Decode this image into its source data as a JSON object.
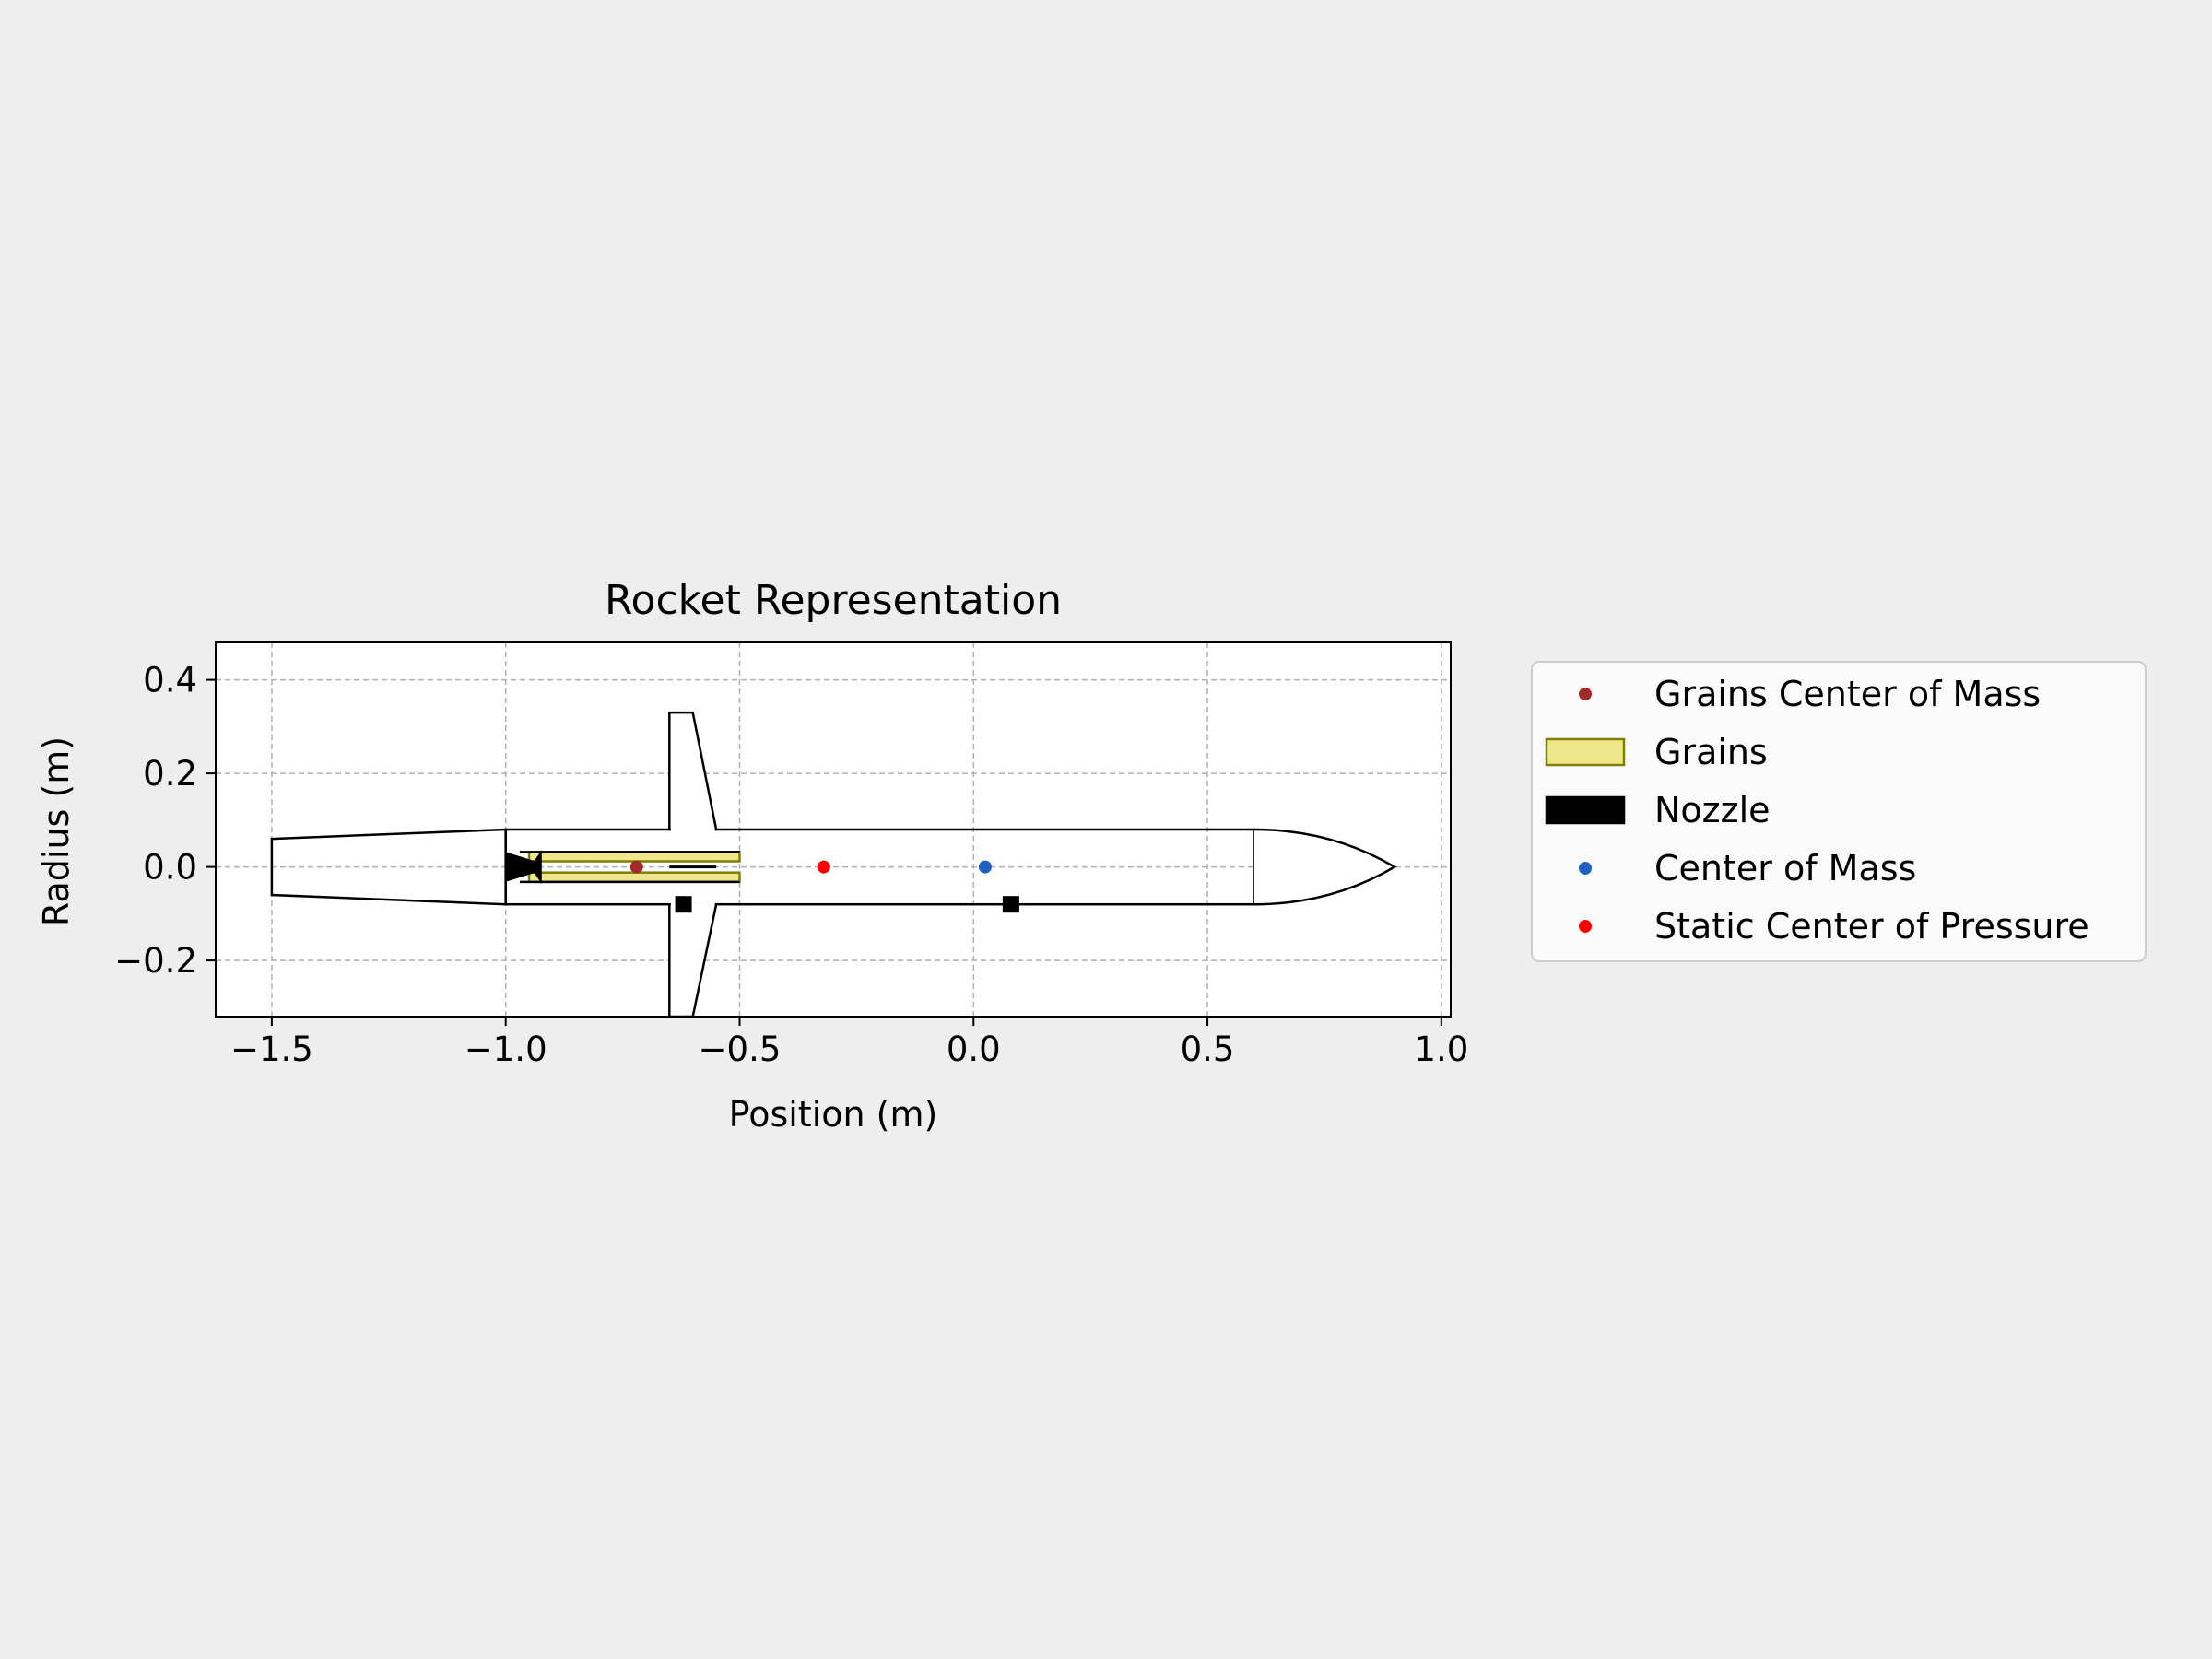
{
  "chart_data": {
    "type": "scatter",
    "title": "Rocket Representation",
    "xlabel": "Position (m)",
    "ylabel": "Radius (m)",
    "xlim": [
      -1.62,
      1.02
    ],
    "ylim": [
      -0.32,
      0.48
    ],
    "xticks": [
      -1.5,
      -1.0,
      -0.5,
      0.0,
      0.5,
      1.0
    ],
    "xtick_labels": [
      "−1.5",
      "−1.0",
      "−0.5",
      "0.0",
      "0.5",
      "1.0"
    ],
    "yticks": [
      -0.2,
      0.0,
      0.2,
      0.4
    ],
    "ytick_labels": [
      "−0.2",
      "0.0",
      "0.2",
      "0.4"
    ],
    "grid": true,
    "legend_position": "outside-right",
    "legend": [
      {
        "label": "Grains Center of Mass",
        "marker": "dot",
        "color": "#a52a2a"
      },
      {
        "label": "Grains",
        "marker": "patch",
        "color": "#f0e68c",
        "edge": "#808000"
      },
      {
        "label": "Nozzle",
        "marker": "patch",
        "color": "#000000",
        "edge": "#000000"
      },
      {
        "label": "Center of Mass",
        "marker": "dot",
        "color": "#1f5fbf"
      },
      {
        "label": "Static Center of Pressure",
        "marker": "dot",
        "color": "#ff0000"
      }
    ],
    "geometry": {
      "tail": [
        [
          -1.5,
          0.06
        ],
        [
          -1.0,
          0.08
        ],
        [
          -1.0,
          -0.08
        ],
        [
          -1.5,
          -0.06
        ]
      ],
      "body_tube": {
        "x_start": -1.0,
        "x_end": 0.6,
        "radius": 0.08
      },
      "nose_cone": {
        "x_start": 0.6,
        "tip_x": 0.9,
        "radius": 0.08
      },
      "fins": {
        "root_x": [
          -0.65,
          -0.55
        ],
        "tip_x": [
          -0.65,
          -0.6
        ],
        "span_top": 0.33,
        "span_bottom": -0.32
      },
      "grains": {
        "x_start": -0.95,
        "x_end": -0.5,
        "outer_radius": 0.032,
        "inner_radius": 0.012
      },
      "nozzle": {
        "x_start": -1.0,
        "x_end": -0.93,
        "radius_exit": 0.03,
        "radius_throat": 0.008
      },
      "rail_buttons": [
        {
          "x": -0.62,
          "y": -0.08
        },
        {
          "x": 0.08,
          "y": -0.08
        }
      ]
    },
    "points": {
      "grains_center_of_mass": {
        "x": -0.72,
        "y": 0.0
      },
      "static_center_of_pressure": {
        "x": -0.32,
        "y": 0.0
      },
      "center_of_mass": {
        "x": 0.025,
        "y": 0.0
      }
    }
  }
}
